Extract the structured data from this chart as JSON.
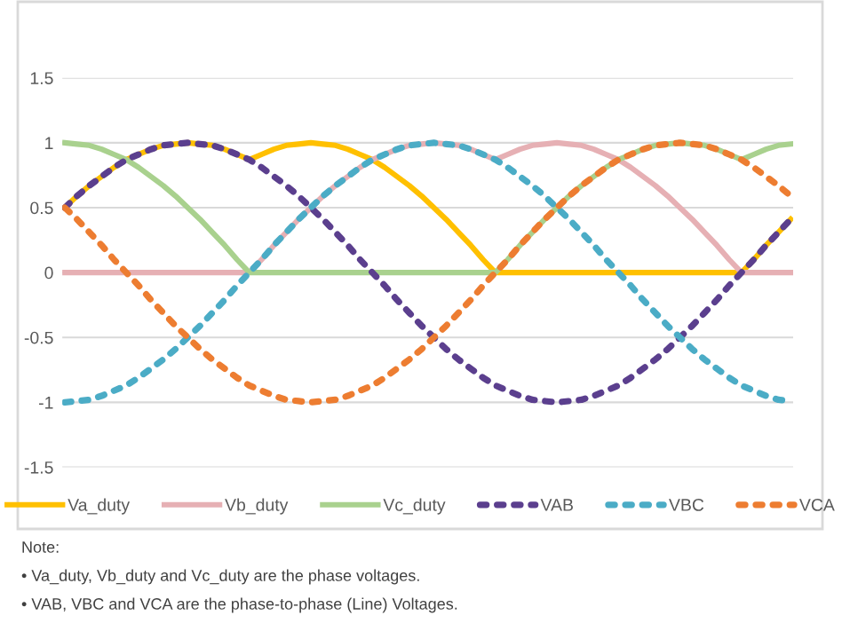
{
  "chart_data": {
    "type": "line",
    "categories": [
      null,
      null,
      null,
      null,
      null,
      null,
      null,
      null,
      null,
      null,
      null,
      null,
      null,
      null,
      null,
      null,
      null,
      null,
      null,
      null,
      null,
      null,
      null,
      null,
      null,
      null,
      null,
      null,
      null,
      null,
      null,
      null,
      null,
      null,
      null,
      null,
      null,
      null,
      null,
      null,
      null,
      null,
      null,
      null,
      null,
      null,
      null,
      null,
      null,
      null,
      null,
      null,
      null,
      null,
      null,
      null,
      null,
      null,
      null,
      null
    ],
    "series": [
      {
        "name": "Va_duty",
        "color": "#ffc000",
        "line_style": "solid",
        "values": [
          0.5,
          0.59,
          0.67,
          0.74,
          0.81,
          0.87,
          0.91,
          0.95,
          0.98,
          0.99,
          1,
          0.99,
          0.98,
          0.95,
          0.91,
          0.87,
          0.91,
          0.95,
          0.98,
          0.99,
          1,
          0.99,
          0.98,
          0.95,
          0.91,
          0.87,
          0.81,
          0.74,
          0.67,
          0.59,
          0.5,
          0.41,
          0.31,
          0.21,
          0.1,
          0,
          0,
          0,
          0,
          0,
          0,
          0,
          0,
          0,
          0,
          0,
          0,
          0,
          0,
          0,
          0,
          0,
          0,
          0,
          0,
          0,
          0.1,
          0.21,
          0.31,
          0.41
        ]
      },
      {
        "name": "Vb_duty",
        "color": "#e6b0b4",
        "line_style": "solid",
        "values": [
          0,
          0,
          0,
          0,
          0,
          0,
          0,
          0,
          0,
          0,
          0,
          0,
          0,
          0,
          0,
          0,
          0.1,
          0.21,
          0.31,
          0.41,
          0.5,
          0.59,
          0.67,
          0.74,
          0.81,
          0.87,
          0.91,
          0.95,
          0.98,
          0.99,
          1,
          0.99,
          0.98,
          0.95,
          0.91,
          0.87,
          0.91,
          0.95,
          0.98,
          0.99,
          1,
          0.99,
          0.98,
          0.95,
          0.91,
          0.87,
          0.81,
          0.74,
          0.67,
          0.59,
          0.5,
          0.41,
          0.31,
          0.21,
          0.1,
          0,
          0,
          0,
          0,
          0
        ]
      },
      {
        "name": "Vc_duty",
        "color": "#a9d18e",
        "line_style": "solid",
        "values": [
          1,
          0.99,
          0.98,
          0.95,
          0.91,
          0.87,
          0.81,
          0.74,
          0.67,
          0.59,
          0.5,
          0.41,
          0.31,
          0.21,
          0.1,
          0,
          0,
          0,
          0,
          0,
          0,
          0,
          0,
          0,
          0,
          0,
          0,
          0,
          0,
          0,
          0,
          0,
          0,
          0,
          0,
          0,
          0.1,
          0.21,
          0.31,
          0.41,
          0.5,
          0.59,
          0.67,
          0.74,
          0.81,
          0.87,
          0.91,
          0.95,
          0.98,
          0.99,
          1,
          0.99,
          0.98,
          0.95,
          0.91,
          0.87,
          0.91,
          0.95,
          0.98,
          0.99
        ]
      },
      {
        "name": "VAB",
        "color": "#5b3f8e",
        "line_style": "dotted",
        "values": [
          0.5,
          0.59,
          0.67,
          0.74,
          0.81,
          0.87,
          0.91,
          0.95,
          0.98,
          0.99,
          1,
          0.99,
          0.98,
          0.95,
          0.91,
          0.87,
          0.81,
          0.74,
          0.67,
          0.59,
          0.5,
          0.41,
          0.31,
          0.21,
          0.1,
          0,
          -0.1,
          -0.21,
          -0.31,
          -0.41,
          -0.5,
          -0.59,
          -0.67,
          -0.74,
          -0.81,
          -0.87,
          -0.91,
          -0.95,
          -0.98,
          -0.99,
          -1,
          -0.99,
          -0.98,
          -0.95,
          -0.91,
          -0.87,
          -0.81,
          -0.74,
          -0.67,
          -0.59,
          -0.5,
          -0.41,
          -0.31,
          -0.21,
          -0.1,
          0,
          0.1,
          0.21,
          0.31,
          0.41
        ]
      },
      {
        "name": "VBC",
        "color": "#4bacc6",
        "line_style": "dotted",
        "values": [
          -1,
          -0.99,
          -0.98,
          -0.95,
          -0.91,
          -0.87,
          -0.81,
          -0.74,
          -0.67,
          -0.59,
          -0.5,
          -0.41,
          -0.31,
          -0.21,
          -0.1,
          0,
          0.1,
          0.21,
          0.31,
          0.41,
          0.5,
          0.59,
          0.67,
          0.74,
          0.81,
          0.87,
          0.91,
          0.95,
          0.98,
          0.99,
          1,
          0.99,
          0.98,
          0.95,
          0.91,
          0.87,
          0.81,
          0.74,
          0.67,
          0.59,
          0.5,
          0.41,
          0.31,
          0.21,
          0.1,
          0,
          -0.1,
          -0.21,
          -0.31,
          -0.41,
          -0.5,
          -0.59,
          -0.67,
          -0.74,
          -0.81,
          -0.87,
          -0.91,
          -0.95,
          -0.98,
          -0.99
        ]
      },
      {
        "name": "VCA",
        "color": "#ed7d31",
        "line_style": "dotted",
        "values": [
          0.5,
          0.41,
          0.31,
          0.21,
          0.1,
          0,
          -0.1,
          -0.21,
          -0.31,
          -0.41,
          -0.5,
          -0.59,
          -0.67,
          -0.74,
          -0.81,
          -0.87,
          -0.91,
          -0.95,
          -0.98,
          -0.99,
          -1,
          -0.99,
          -0.98,
          -0.95,
          -0.91,
          -0.87,
          -0.81,
          -0.74,
          -0.67,
          -0.59,
          -0.5,
          -0.41,
          -0.31,
          -0.21,
          -0.1,
          0,
          0.1,
          0.21,
          0.31,
          0.41,
          0.5,
          0.59,
          0.67,
          0.74,
          0.81,
          0.87,
          0.91,
          0.95,
          0.98,
          0.99,
          1,
          0.99,
          0.98,
          0.95,
          0.91,
          0.87,
          0.81,
          0.74,
          0.67,
          0.59
        ]
      }
    ],
    "ylim": [
      -1.5,
      1.5
    ],
    "yticks": [
      -1.5,
      -1,
      -0.5,
      0,
      0.5,
      1,
      1.5
    ],
    "grid": "y",
    "legend": "bottom",
    "marker": "none",
    "annotations": [
      "Note:",
      "• Va_duty, Vb_duty and Vc_duty are the phase voltages.",
      "• VAB, VBC and VCA are the phase-to-phase (Line) Voltages."
    ]
  }
}
